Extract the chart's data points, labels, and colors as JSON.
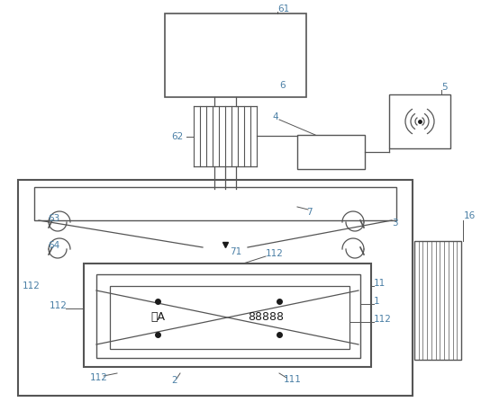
{
  "bg_color": "#ffffff",
  "line_color": "#4a7fa5",
  "text_color": "#4a7fa5",
  "dark_color": "#1a1a1a",
  "gray_color": "#555555",
  "font_size": 7.5,
  "fig_width": 5.34,
  "fig_height": 4.57,
  "dpi": 100
}
